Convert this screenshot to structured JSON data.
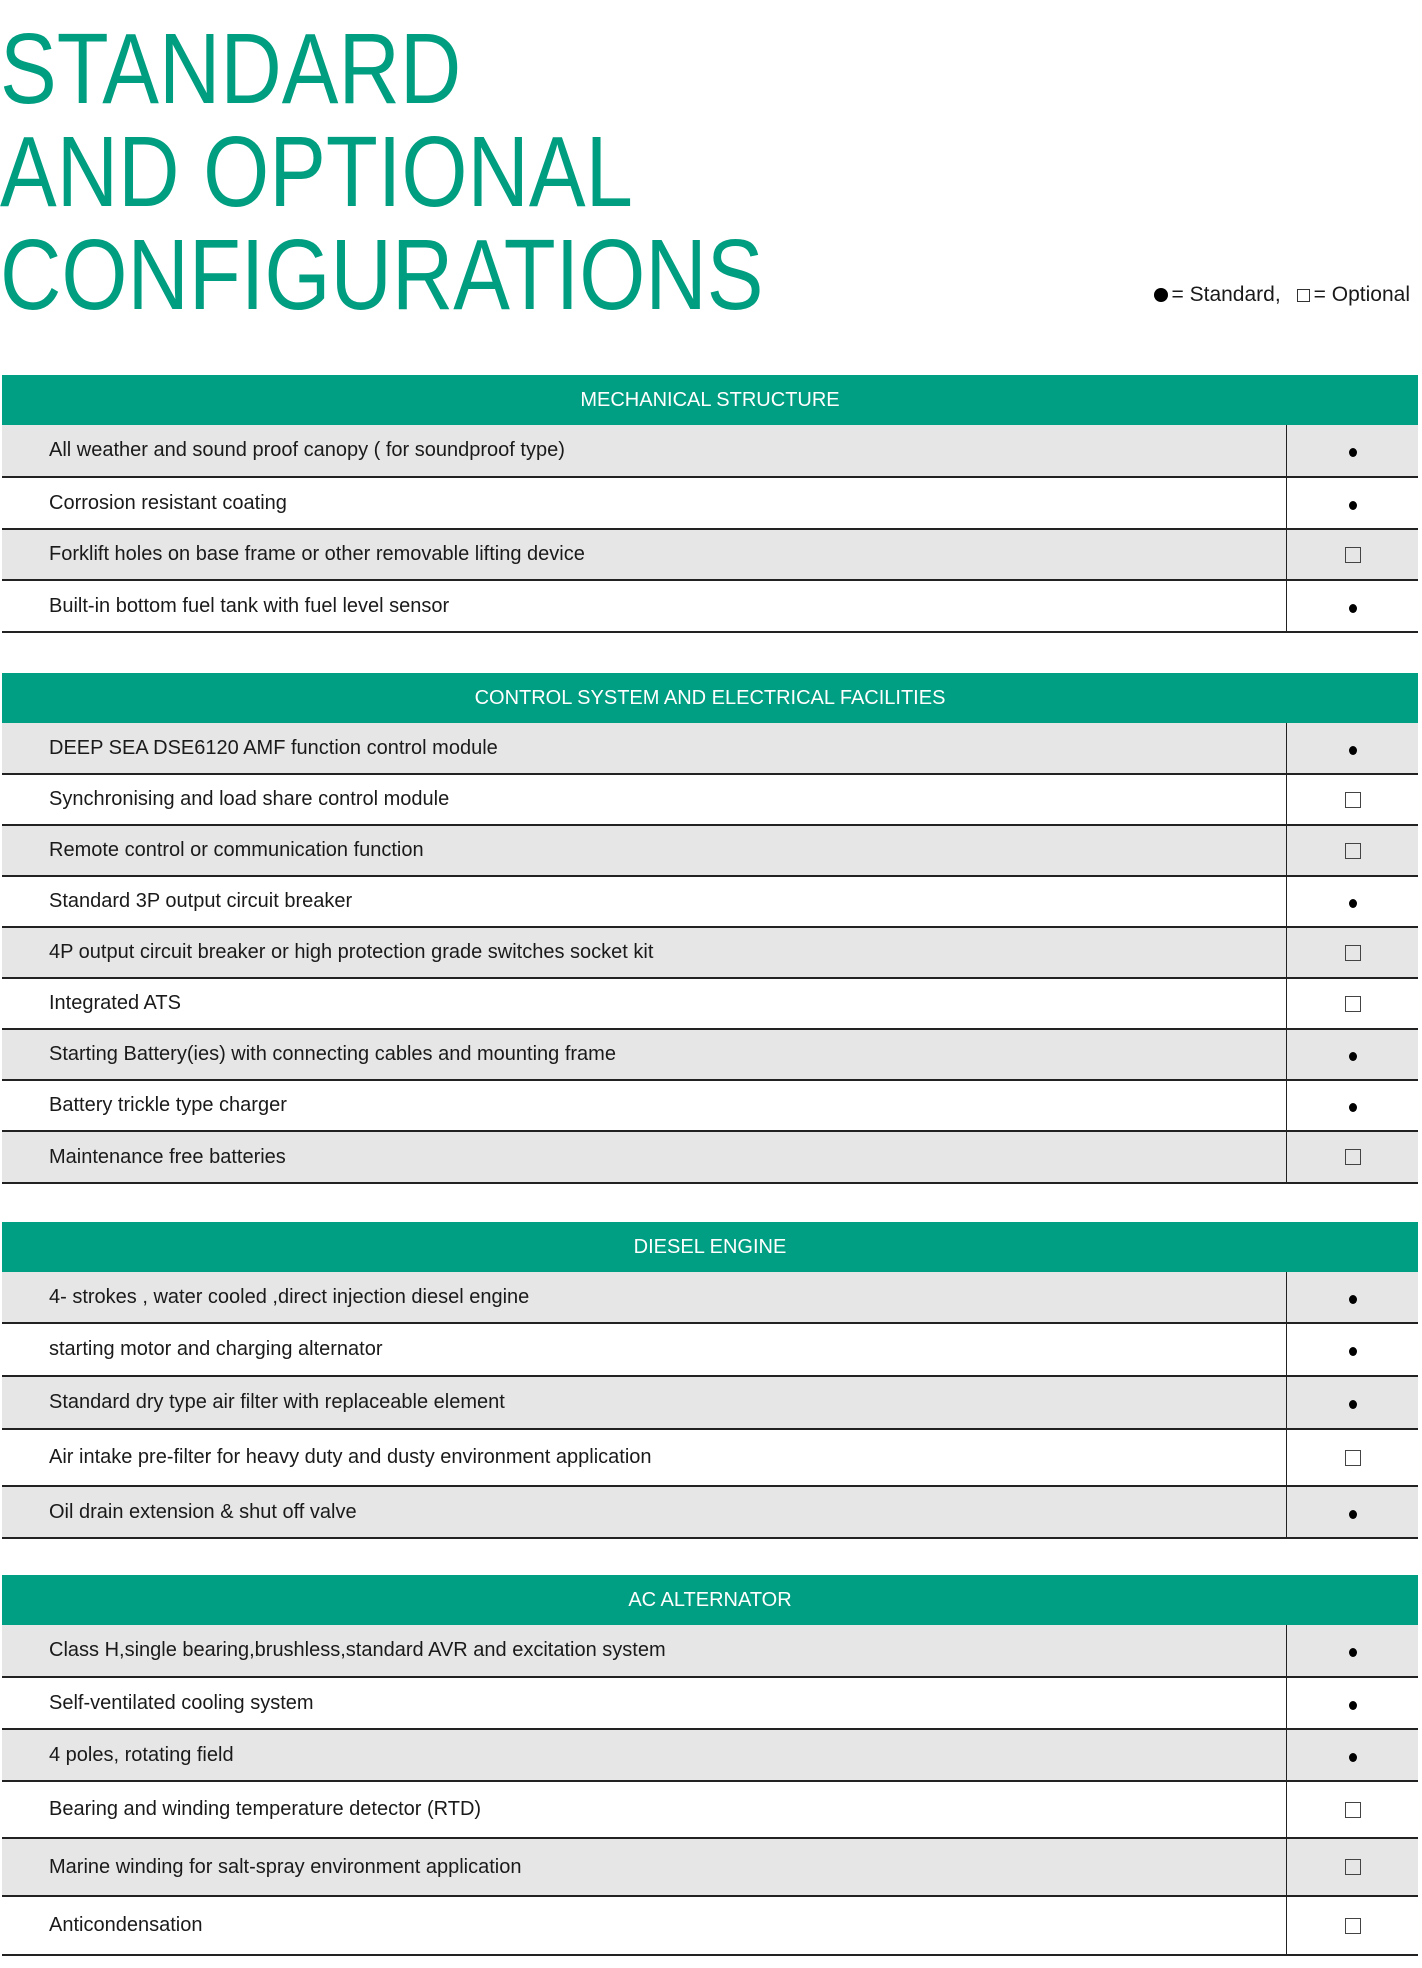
{
  "title": [
    "STANDARD",
    "AND OPTIONAL",
    "CONFIGURATIONS"
  ],
  "legend": {
    "standard_label": "= Standard,",
    "optional_label": "= Optional",
    "standard_icon": "filled-circle",
    "optional_icon": "empty-square"
  },
  "colors": {
    "accent": "#009e82",
    "row_alt": "#e6e6e6"
  },
  "sections": [
    {
      "heading": "MECHANICAL STRUCTURE",
      "rows": [
        {
          "label": "All weather and sound proof  canopy  ( for soundproof type)",
          "type": "standard"
        },
        {
          "label": "Corrosion resistant coating",
          "type": "standard"
        },
        {
          "label": "Forklift holes on base frame or other removable lifting device",
          "type": "optional"
        },
        {
          "label": "Built-in bottom fuel tank with fuel level sensor",
          "type": "standard"
        }
      ]
    },
    {
      "heading": "CONTROL SYSTEM AND  ELECTRICAL FACILITIES",
      "rows": [
        {
          "label": "DEEP SEA DSE6120 AMF function control module",
          "type": "standard"
        },
        {
          "label": "Synchronising and load share control module",
          "type": "optional"
        },
        {
          "label": "Remote control or communication function",
          "type": "optional"
        },
        {
          "label": "Standard 3P output circuit breaker",
          "type": "standard"
        },
        {
          "label": "4P output circuit breaker or high protection grade switches socket kit",
          "type": "optional"
        },
        {
          "label": "Integrated ATS",
          "type": "optional"
        },
        {
          "label": "Starting Battery(ies) with connecting cables and mounting frame",
          "type": "standard"
        },
        {
          "label": "Battery trickle type charger",
          "type": "standard"
        },
        {
          "label": "Maintenance free batteries",
          "type": "optional"
        }
      ]
    },
    {
      "heading": "DIESEL ENGINE",
      "rows": [
        {
          "label": "4- strokes , water cooled ,direct injection diesel engine",
          "type": "standard"
        },
        {
          "label": "starting motor and charging alternator",
          "type": "standard"
        },
        {
          "label": "Standard dry type air filter with replaceable element",
          "type": "standard"
        },
        {
          "label": "Air intake pre-filter for heavy duty and dusty environment application",
          "type": "optional"
        },
        {
          "label": "Oil drain extension & shut off valve",
          "type": "standard"
        }
      ]
    },
    {
      "heading": "AC ALTERNATOR",
      "rows": [
        {
          "label": "Class H,single bearing,brushless,standard AVR and  excitation system",
          "type": "standard"
        },
        {
          "label": "Self-ventilated  cooling system",
          "type": "standard"
        },
        {
          "label": "4 poles, rotating field",
          "type": "standard"
        },
        {
          "label": "Bearing and winding temperature detector  (RTD)",
          "type": "optional"
        },
        {
          "label": "Marine winding for salt-spray environment application",
          "type": "optional"
        },
        {
          "label": "Anticondensation",
          "type": "optional"
        }
      ]
    }
  ]
}
